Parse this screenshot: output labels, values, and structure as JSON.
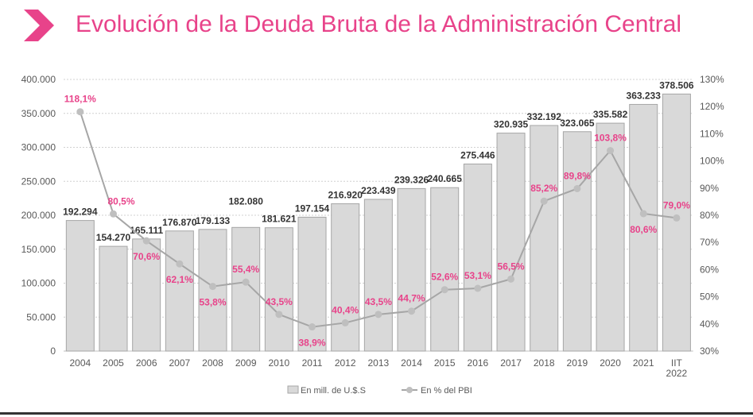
{
  "title": "Evolución de la Deuda Bruta de la Administración Central",
  "colors": {
    "accent": "#e8438a",
    "bar": "#d9d9d9",
    "bar_stroke": "#a6a6a6",
    "line": "#a6a6a6"
  },
  "chart_data": {
    "type": "bar+line",
    "categories": [
      "2004",
      "2005",
      "2006",
      "2007",
      "2008",
      "2009",
      "2010",
      "2011",
      "2012",
      "2013",
      "2014",
      "2015",
      "2016",
      "2017",
      "2018",
      "2019",
      "2020",
      "2021",
      "IIT 2022"
    ],
    "series": [
      {
        "name": "En mill. de U.$.S",
        "type": "bar",
        "axis": "left",
        "values": [
          192294,
          154270,
          165111,
          176870,
          179133,
          182080,
          181621,
          197154,
          216920,
          223439,
          239326,
          240665,
          275446,
          320935,
          332192,
          323065,
          335582,
          363233,
          378506
        ],
        "labels": [
          "192.294",
          "154.270",
          "165.111",
          "176.870",
          "179.133",
          "182.080",
          "181.621",
          "197.154",
          "216.920",
          "223.439",
          "239.326",
          "240.665",
          "275.446",
          "320.935",
          "332.192",
          "323.065",
          "335.582",
          "363.233",
          "378.506"
        ]
      },
      {
        "name": "En % del PBI",
        "type": "line",
        "axis": "right",
        "values": [
          118.1,
          80.5,
          70.6,
          62.1,
          53.8,
          55.4,
          43.5,
          38.9,
          40.4,
          43.5,
          44.7,
          52.6,
          53.1,
          56.5,
          85.2,
          89.8,
          103.8,
          80.6,
          79.0
        ],
        "labels": [
          "118,1%",
          "80,5%",
          "70,6%",
          "62,1%",
          "53,8%",
          "55,4%",
          "43,5%",
          "38,9%",
          "40,4%",
          "43,5%",
          "44,7%",
          "52,6%",
          "53,1%",
          "56,5%",
          "85,2%",
          "89,8%",
          "103,8%",
          "80,6%",
          "79,0%"
        ]
      }
    ],
    "yleft": {
      "lim": [
        0,
        400000
      ],
      "ticks": [
        "0",
        "50.000",
        "100.000",
        "150.000",
        "200.000",
        "250.000",
        "300.000",
        "350.000",
        "400.000"
      ]
    },
    "yright": {
      "lim": [
        30,
        130
      ],
      "ticks": [
        "30%",
        "40%",
        "50%",
        "60%",
        "70%",
        "80%",
        "90%",
        "100%",
        "110%",
        "120%",
        "130%"
      ]
    },
    "grid": true,
    "legend": "bottom"
  }
}
